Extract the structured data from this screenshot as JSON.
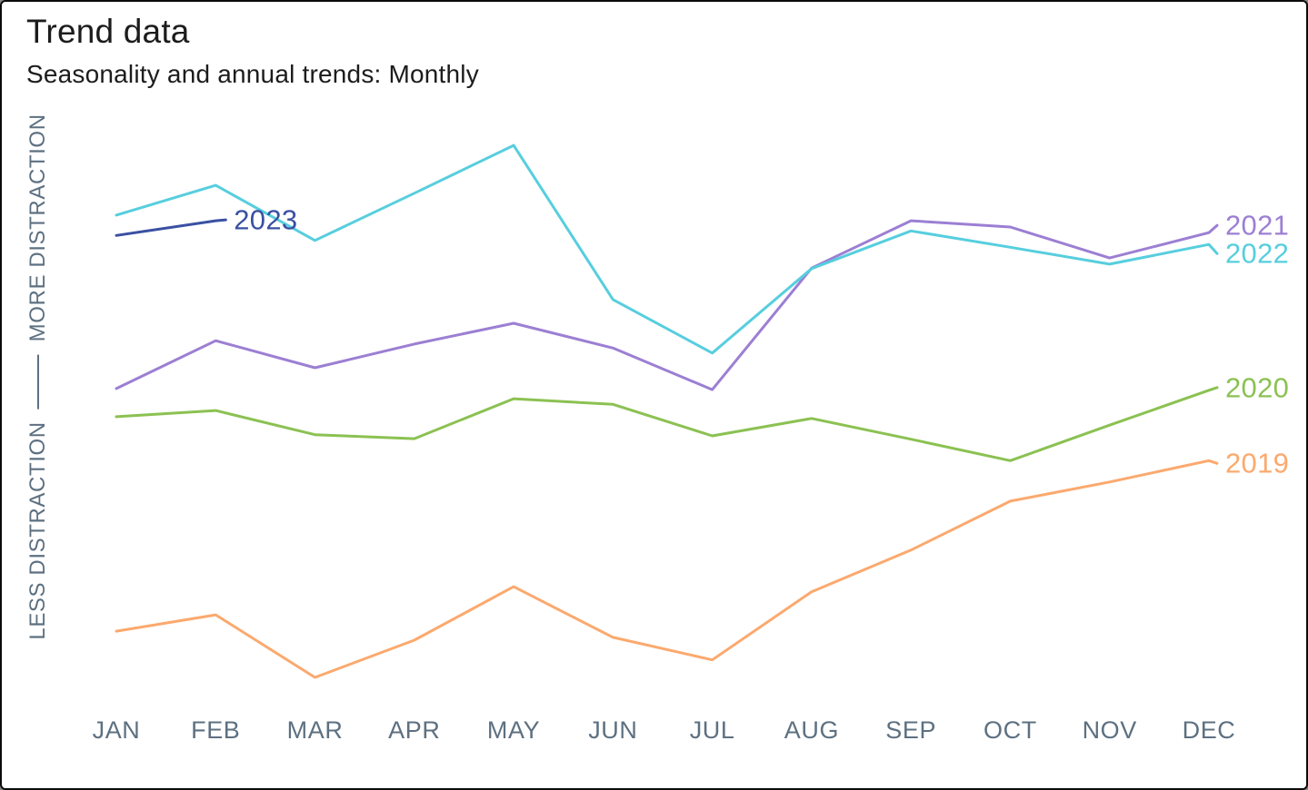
{
  "header": {
    "title": "Trend data",
    "subtitle": "Seasonality and annual trends: Monthly"
  },
  "axes": {
    "y_label_bottom": "LESS DISTRACTION",
    "y_label_top": "MORE DISTRACTION",
    "months": [
      "JAN",
      "FEB",
      "MAR",
      "APR",
      "MAY",
      "JUN",
      "JUL",
      "AUG",
      "SEP",
      "OCT",
      "NOV",
      "DEC"
    ]
  },
  "colors": {
    "series_2019": "#fba96e",
    "series_2020": "#8bc152",
    "series_2021": "#9c7fd3",
    "series_2022": "#57cede",
    "series_2023": "#3a50a2",
    "axis_text": "#5d7081",
    "title_text": "#1c1c1c"
  },
  "chart_data": {
    "type": "line",
    "title": "Trend data",
    "subtitle": "Seasonality and annual trends: Monthly",
    "xlabel": "",
    "ylabel": "LESS DISTRACTION — MORE DISTRACTION",
    "x": [
      "JAN",
      "FEB",
      "MAR",
      "APR",
      "MAY",
      "JUN",
      "JUL",
      "AUG",
      "SEP",
      "OCT",
      "NOV",
      "DEC"
    ],
    "ylim": [
      0,
      100
    ],
    "y_units": "relative distraction (qualitative axis, 0 = less, 100 = more)",
    "grid": false,
    "legend_position": "inline line-end labels",
    "series": [
      {
        "name": "2019",
        "color": "#fba96e",
        "values": [
          12.4,
          15.3,
          4.2,
          10.8,
          20.3,
          11.3,
          7.3,
          19.4,
          26.8,
          35.5,
          38.9,
          42.7
        ]
      },
      {
        "name": "2020",
        "color": "#8bc152",
        "values": [
          50.5,
          51.6,
          47.3,
          46.6,
          53.7,
          52.7,
          47.1,
          50.2,
          46.5,
          42.7,
          49.0,
          55.2
        ]
      },
      {
        "name": "2021",
        "color": "#9c7fd3",
        "values": [
          55.5,
          64.0,
          59.2,
          63.4,
          67.1,
          62.7,
          55.3,
          76.9,
          85.3,
          84.2,
          78.7,
          83.2
        ]
      },
      {
        "name": "2022",
        "color": "#57cede",
        "values": [
          86.3,
          91.6,
          81.8,
          90.2,
          98.7,
          71.3,
          61.8,
          76.8,
          83.5,
          80.6,
          77.6,
          81.1
        ]
      },
      {
        "name": "2023",
        "color": "#3a50a2",
        "values": [
          82.7,
          85.3,
          null,
          null,
          null,
          null,
          null,
          null,
          null,
          null,
          null,
          null
        ]
      }
    ]
  }
}
